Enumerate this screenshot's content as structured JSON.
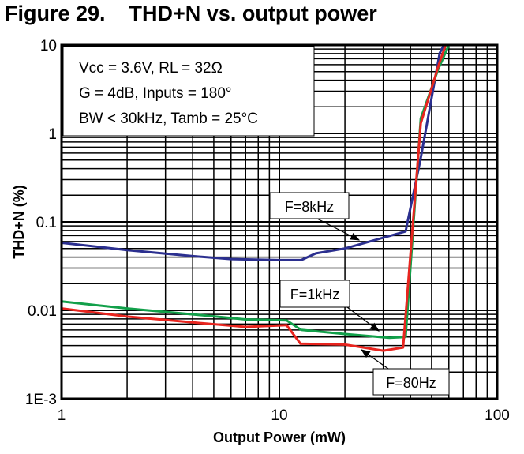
{
  "title": "Figure 29.    THD+N vs. output power",
  "chart_data": {
    "type": "line",
    "title": "THD+N vs. output power",
    "xlabel": "Output Power (mW)",
    "ylabel": "THD+N (%)",
    "xscale": "log",
    "yscale": "log",
    "xlim": [
      1,
      100
    ],
    "ylim": [
      0.001,
      10
    ],
    "xticks": [
      "1",
      "10",
      "100"
    ],
    "xtick_values": [
      1,
      10,
      100
    ],
    "yticks": [
      "1E-3",
      "0.01",
      "0.1",
      "1",
      "10"
    ],
    "ytick_values": [
      0.001,
      0.01,
      0.1,
      1,
      10
    ],
    "grid": true,
    "conditions": [
      "Vcc = 3.6V, RL = 32Ω",
      "G = 4dB, Inputs = 180°",
      "BW < 30kHz, Tamb = 25°C"
    ],
    "series": [
      {
        "name": "F=8kHz",
        "color": "#2b2f8f",
        "x": [
          1,
          2,
          4,
          6,
          10,
          12.6,
          14.7,
          20,
          38,
          44.6,
          54.5,
          57
        ],
        "y": [
          0.058,
          0.048,
          0.041,
          0.038,
          0.037,
          0.037,
          0.044,
          0.05,
          0.078,
          0.53,
          8.1,
          10
        ]
      },
      {
        "name": "F=1kHz",
        "color": "#12a04a",
        "x": [
          1,
          2,
          4,
          7,
          10.8,
          12.6,
          20,
          32,
          38,
          44.6,
          53.6,
          60
        ],
        "y": [
          0.0126,
          0.0105,
          0.009,
          0.0079,
          0.0077,
          0.006,
          0.0054,
          0.0049,
          0.005,
          1.48,
          5.3,
          10
        ]
      },
      {
        "name": "F=80Hz",
        "color": "#e8251f",
        "x": [
          1,
          2,
          4,
          7,
          10.8,
          12.5,
          20,
          30,
          37,
          44.6,
          54,
          58
        ],
        "y": [
          0.0105,
          0.0085,
          0.0073,
          0.0065,
          0.0068,
          0.0042,
          0.0041,
          0.0035,
          0.0038,
          1.3,
          6,
          10
        ]
      }
    ],
    "annotations": [
      {
        "text": "F=8kHz",
        "points_to": "F=8kHz"
      },
      {
        "text": "F=1kHz",
        "points_to": "F=1kHz"
      },
      {
        "text": "F=80Hz",
        "points_to": "F=80Hz"
      }
    ]
  }
}
